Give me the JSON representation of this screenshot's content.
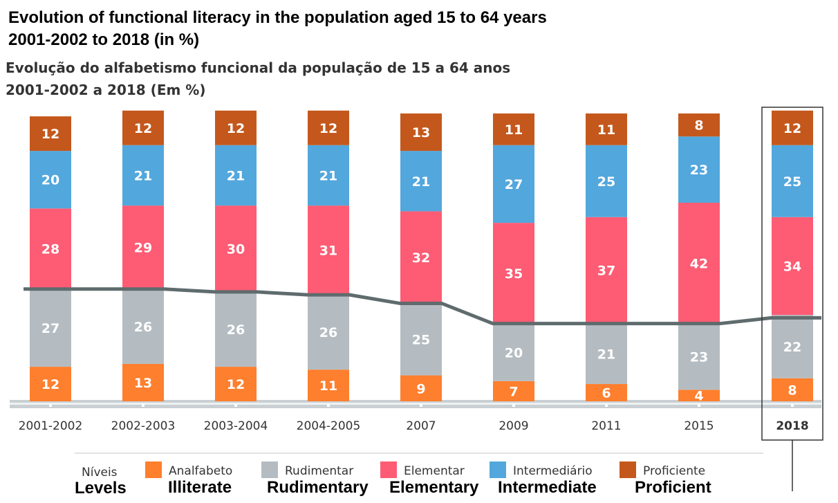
{
  "title_en_1": "Evolution of functional literacy in the population aged 15 to 64 years",
  "title_en_2": "2001-2002 to 2018 (in %)",
  "title_pt_1": "Evolução do alfabetismo funcional da população de 15 a 64 anos",
  "title_pt_2": "2001-2002 a 2018 (Em %)",
  "legend": {
    "title_pt": "Níveis",
    "title_en": "Levels",
    "items": [
      {
        "pt": "Analfabeto",
        "en": "Illiterate",
        "color": "#fe7f2d"
      },
      {
        "pt": "Rudimentar",
        "en": "Rudimentary",
        "color": "#b5bcc1"
      },
      {
        "pt": "Elementar",
        "en": "Elementary",
        "color": "#fd5c74"
      },
      {
        "pt": "Intermediário",
        "en": "Intermediate",
        "color": "#52a7dd"
      },
      {
        "pt": "Proficiente",
        "en": "Proficient",
        "color": "#c4581c"
      }
    ]
  },
  "chart_data": {
    "type": "bar",
    "stacked": true,
    "categories": [
      "2001-2002",
      "2002-2003",
      "2003-2004",
      "2004-2005",
      "2007",
      "2009",
      "2011",
      "2015",
      "2018"
    ],
    "highlight_category": "2018",
    "series": [
      {
        "name": "Analfabeto",
        "color": "#fe7f2d",
        "values": [
          12,
          13,
          12,
          11,
          9,
          7,
          6,
          4,
          8
        ]
      },
      {
        "name": "Rudimentar",
        "color": "#b5bcc1",
        "values": [
          27,
          26,
          26,
          26,
          25,
          20,
          21,
          23,
          22
        ]
      },
      {
        "name": "Elementar",
        "color": "#fd5c74",
        "values": [
          28,
          29,
          30,
          31,
          32,
          35,
          37,
          42,
          34
        ]
      },
      {
        "name": "Intermediário",
        "color": "#52a7dd",
        "values": [
          20,
          21,
          21,
          21,
          21,
          27,
          25,
          23,
          25
        ]
      },
      {
        "name": "Proficiente",
        "color": "#c4581c",
        "values": [
          12,
          12,
          12,
          12,
          13,
          11,
          11,
          8,
          12
        ]
      }
    ],
    "line": {
      "color": "#5f6b6d",
      "values": [
        39,
        39,
        38,
        37,
        34,
        27,
        27,
        27,
        29
      ]
    },
    "ylim": [
      0,
      100
    ],
    "grid": false
  }
}
